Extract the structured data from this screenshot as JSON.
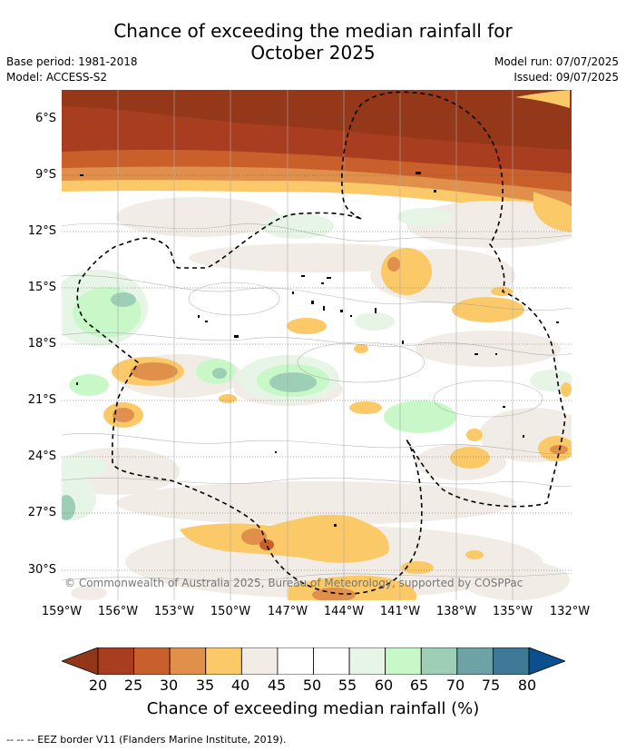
{
  "title_line1": "Chance of exceeding the median rainfall for",
  "title_line2": "October 2025",
  "base_period": "Base period: 1981-2018",
  "model": "Model: ACCESS-S2",
  "model_run": "Model run: 07/07/2025",
  "issued": "Issued: 09/07/2025",
  "y_ticks": [
    "6°S",
    "9°S",
    "12°S",
    "15°S",
    "18°S",
    "21°S",
    "24°S",
    "27°S",
    "30°S"
  ],
  "x_ticks": [
    "159°W",
    "156°W",
    "153°W",
    "150°W",
    "147°W",
    "144°W",
    "141°W",
    "138°W",
    "135°W",
    "132°W"
  ],
  "copyright": "© Commonwealth of Australia 2025, Bureau of Meteorology, supported by COSPPac",
  "colorbar": {
    "title": "Chance of exceeding median rainfall (%)",
    "ticks": [
      "20",
      "25",
      "30",
      "35",
      "40",
      "45",
      "50",
      "55",
      "60",
      "65",
      "70",
      "75",
      "80"
    ],
    "colors": [
      "#a83e1f",
      "#c9602b",
      "#e0904a",
      "#fcc968",
      "#f1ece6",
      "#ffffff",
      "#ffffff",
      "#e6f5e6",
      "#c8f8c8",
      "#9dcfb6",
      "#6ea3a6",
      "#3e7a97"
    ],
    "under_color": "#923619",
    "over_color": "#0b4f8c"
  },
  "footnote": "--  --  -- EEZ border V11 (Flanders Marine Institute, 2019)."
}
